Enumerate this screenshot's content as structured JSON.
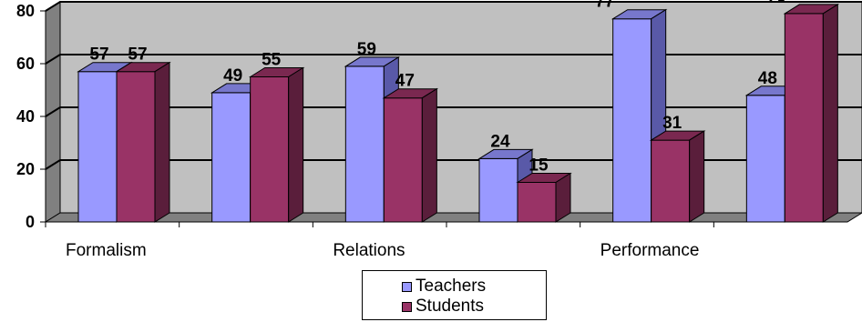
{
  "chart_data": {
    "type": "bar",
    "categories": [
      "Formalism",
      "",
      "Relations",
      "",
      "Performance",
      ""
    ],
    "series": [
      {
        "name": "Teachers",
        "values": [
          57,
          49,
          59,
          24,
          77,
          48
        ]
      },
      {
        "name": "Students",
        "values": [
          57,
          55,
          47,
          15,
          31,
          79
        ]
      }
    ],
    "ylim": [
      0,
      80
    ],
    "yticks": [
      "0",
      "20",
      "40",
      "60",
      "80"
    ],
    "grid": true,
    "legend_placement": "bottom",
    "colors": {
      "teachers_front": "#9999ff",
      "teachers_side": "#5959a8",
      "teachers_top": "#7777cc",
      "students_front": "#993366",
      "students_side": "#5a1e3b",
      "students_top": "#7a2850",
      "wall": "#c0c0c0",
      "floor": "#808080"
    }
  },
  "legend": {
    "teachers_label": "Teachers",
    "students_label": "Students"
  }
}
